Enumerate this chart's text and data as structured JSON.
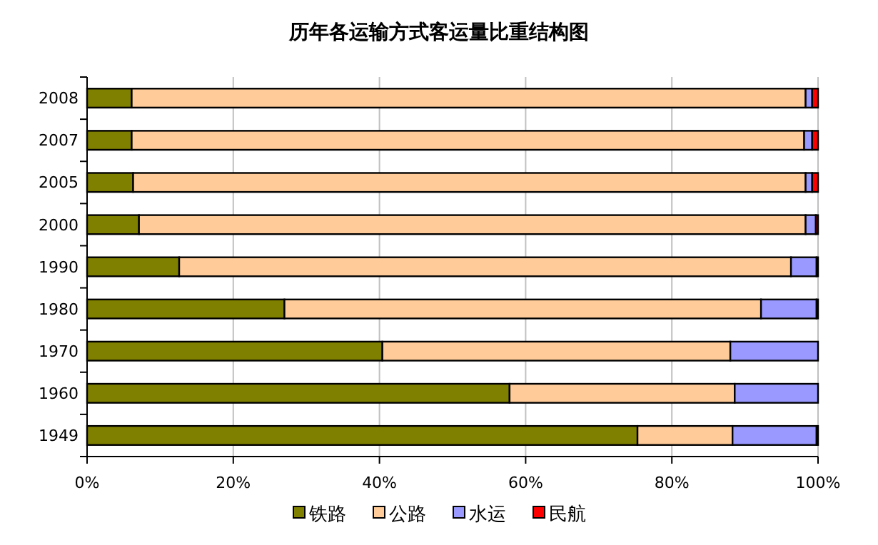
{
  "chart_data": {
    "type": "bar",
    "orientation": "horizontal",
    "stacked": true,
    "title": "历年各运输方式客运量比重结构图",
    "categories": [
      "2008",
      "2007",
      "2005",
      "2000",
      "1990",
      "1980",
      "1970",
      "1960",
      "1949"
    ],
    "series": [
      {
        "name": "铁路",
        "color": "#808000",
        "values": [
          6.1,
          6.1,
          6.3,
          7.1,
          12.6,
          27.0,
          40.4,
          57.8,
          75.3
        ]
      },
      {
        "name": "公路",
        "color": "#ffcc99",
        "values": [
          92.2,
          92.0,
          92.0,
          91.2,
          83.7,
          65.2,
          47.6,
          30.8,
          13.0
        ]
      },
      {
        "name": "水运",
        "color": "#9999ff",
        "values": [
          0.9,
          1.1,
          0.9,
          1.4,
          3.5,
          7.6,
          12.0,
          11.4,
          11.5
        ]
      },
      {
        "name": "民航",
        "color": "#ff0000",
        "values": [
          0.8,
          0.8,
          0.8,
          0.3,
          0.2,
          0.2,
          0,
          0,
          0.2
        ]
      }
    ],
    "xlim": [
      0,
      100
    ],
    "xticks": [
      {
        "value": 0,
        "label": "0%"
      },
      {
        "value": 20,
        "label": "20%"
      },
      {
        "value": 40,
        "label": "40%"
      },
      {
        "value": 60,
        "label": "60%"
      },
      {
        "value": 80,
        "label": "80%"
      },
      {
        "value": 100,
        "label": "100%"
      }
    ],
    "grid": "x",
    "legend": "bottom"
  }
}
